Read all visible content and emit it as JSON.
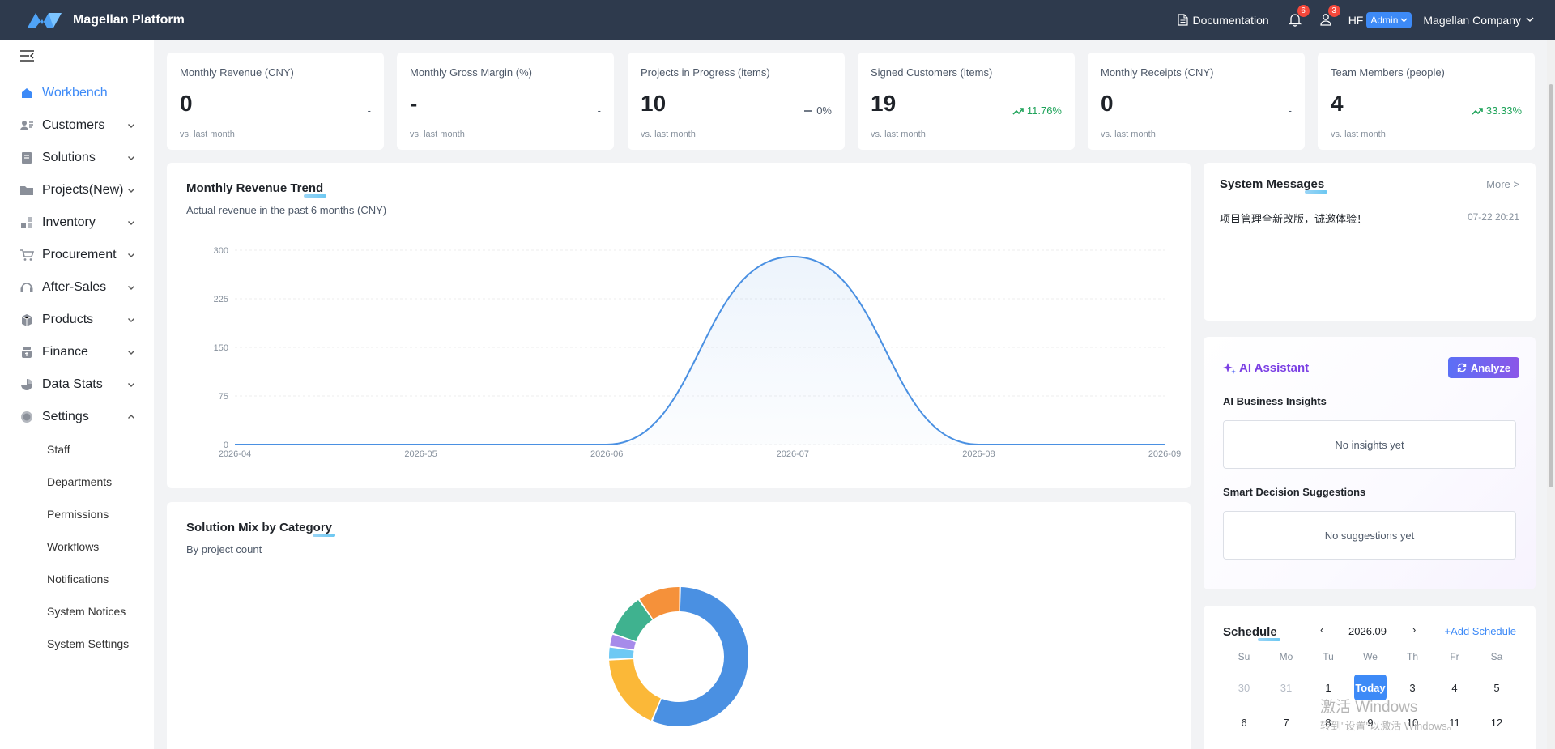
{
  "header": {
    "app_title": "Magellan Platform",
    "documentation": "Documentation",
    "notifications_count": "6",
    "tasks_count": "3",
    "user_initials": "HF",
    "role": "Admin",
    "company": "Magellan Company"
  },
  "sidebar": {
    "items": [
      {
        "label": "Workbench",
        "icon": "home-icon",
        "active": true
      },
      {
        "label": "Customers",
        "icon": "customers-icon"
      },
      {
        "label": "Solutions",
        "icon": "solutions-icon"
      },
      {
        "label": "Projects(New)",
        "icon": "folder-icon"
      },
      {
        "label": "Inventory",
        "icon": "inventory-icon"
      },
      {
        "label": "Procurement",
        "icon": "cart-icon"
      },
      {
        "label": "After-Sales",
        "icon": "headset-icon"
      },
      {
        "label": "Products",
        "icon": "box-icon"
      },
      {
        "label": "Finance",
        "icon": "finance-icon"
      },
      {
        "label": "Data Stats",
        "icon": "pie-icon"
      },
      {
        "label": "Settings",
        "icon": "gear-icon",
        "expanded": true
      }
    ],
    "settings_subitems": [
      "Staff",
      "Departments",
      "Permissions",
      "Workflows",
      "Notifications",
      "System Notices",
      "System Settings"
    ]
  },
  "stats": [
    {
      "label": "Monthly Revenue (CNY)",
      "value": "0",
      "change": "-",
      "trend": "none",
      "sub": "vs. last month"
    },
    {
      "label": "Monthly Gross Margin (%)",
      "value": "-",
      "change": "-",
      "trend": "none",
      "sub": "vs. last month"
    },
    {
      "label": "Projects in Progress (items)",
      "value": "10",
      "change": "0%",
      "trend": "flat",
      "sub": "vs. last month"
    },
    {
      "label": "Signed Customers (items)",
      "value": "19",
      "change": "11.76%",
      "trend": "up",
      "sub": "vs. last month"
    },
    {
      "label": "Monthly Receipts (CNY)",
      "value": "0",
      "change": "-",
      "trend": "none",
      "sub": "vs. last month"
    },
    {
      "label": "Team Members (people)",
      "value": "4",
      "change": "33.33%",
      "trend": "up",
      "sub": "vs. last month"
    }
  ],
  "revenue_card": {
    "title": "Monthly Revenue Trend",
    "subtitle": "Actual revenue in the past 6 months (CNY)"
  },
  "mix_card": {
    "title": "Solution Mix by Category",
    "subtitle": "By project count"
  },
  "messages": {
    "title": "System Messages",
    "more": "More >",
    "items": [
      {
        "text": "项目管理全新改版，诚邀体验！",
        "time": "07-22 20:21"
      }
    ]
  },
  "ai": {
    "title": "AI Assistant",
    "analyze": "Analyze",
    "insights_title": "AI Business Insights",
    "insights_empty": "No insights yet",
    "suggestions_title": "Smart Decision Suggestions",
    "suggestions_empty": "No suggestions yet"
  },
  "schedule": {
    "title": "Schedule",
    "month": "2026.09",
    "add": "+Add Schedule",
    "weekdays": [
      "Su",
      "Mo",
      "Tu",
      "We",
      "Th",
      "Fr",
      "Sa"
    ],
    "days_row1": [
      "30",
      "31",
      "1",
      "Today",
      "3",
      "4",
      "5"
    ],
    "days_row2": [
      "6",
      "7",
      "8",
      "9",
      "10",
      "11",
      "12"
    ]
  },
  "watermark": {
    "line1": "激活 Windows",
    "line2": "转到\"设置\"以激活 Windows。"
  },
  "chart_data": [
    {
      "type": "area",
      "x": [
        "2026-04",
        "2026-05",
        "2026-06",
        "2026-07",
        "2026-08",
        "2026-09"
      ],
      "values": [
        0,
        0,
        0,
        290,
        0,
        0
      ],
      "yticks": [
        0,
        75,
        150,
        225,
        300
      ],
      "ylim": [
        0,
        300
      ],
      "color": "#4a90e2",
      "grid": true
    },
    {
      "type": "pie",
      "slices": [
        {
          "value": 56,
          "color": "#4a90e2"
        },
        {
          "value": 18,
          "color": "#fbb838"
        },
        {
          "value": 3,
          "color": "#6ec9f4"
        },
        {
          "value": 3,
          "color": "#a68bea"
        },
        {
          "value": 10,
          "color": "#3fb28f"
        },
        {
          "value": 10,
          "color": "#f5913a"
        }
      ]
    }
  ]
}
